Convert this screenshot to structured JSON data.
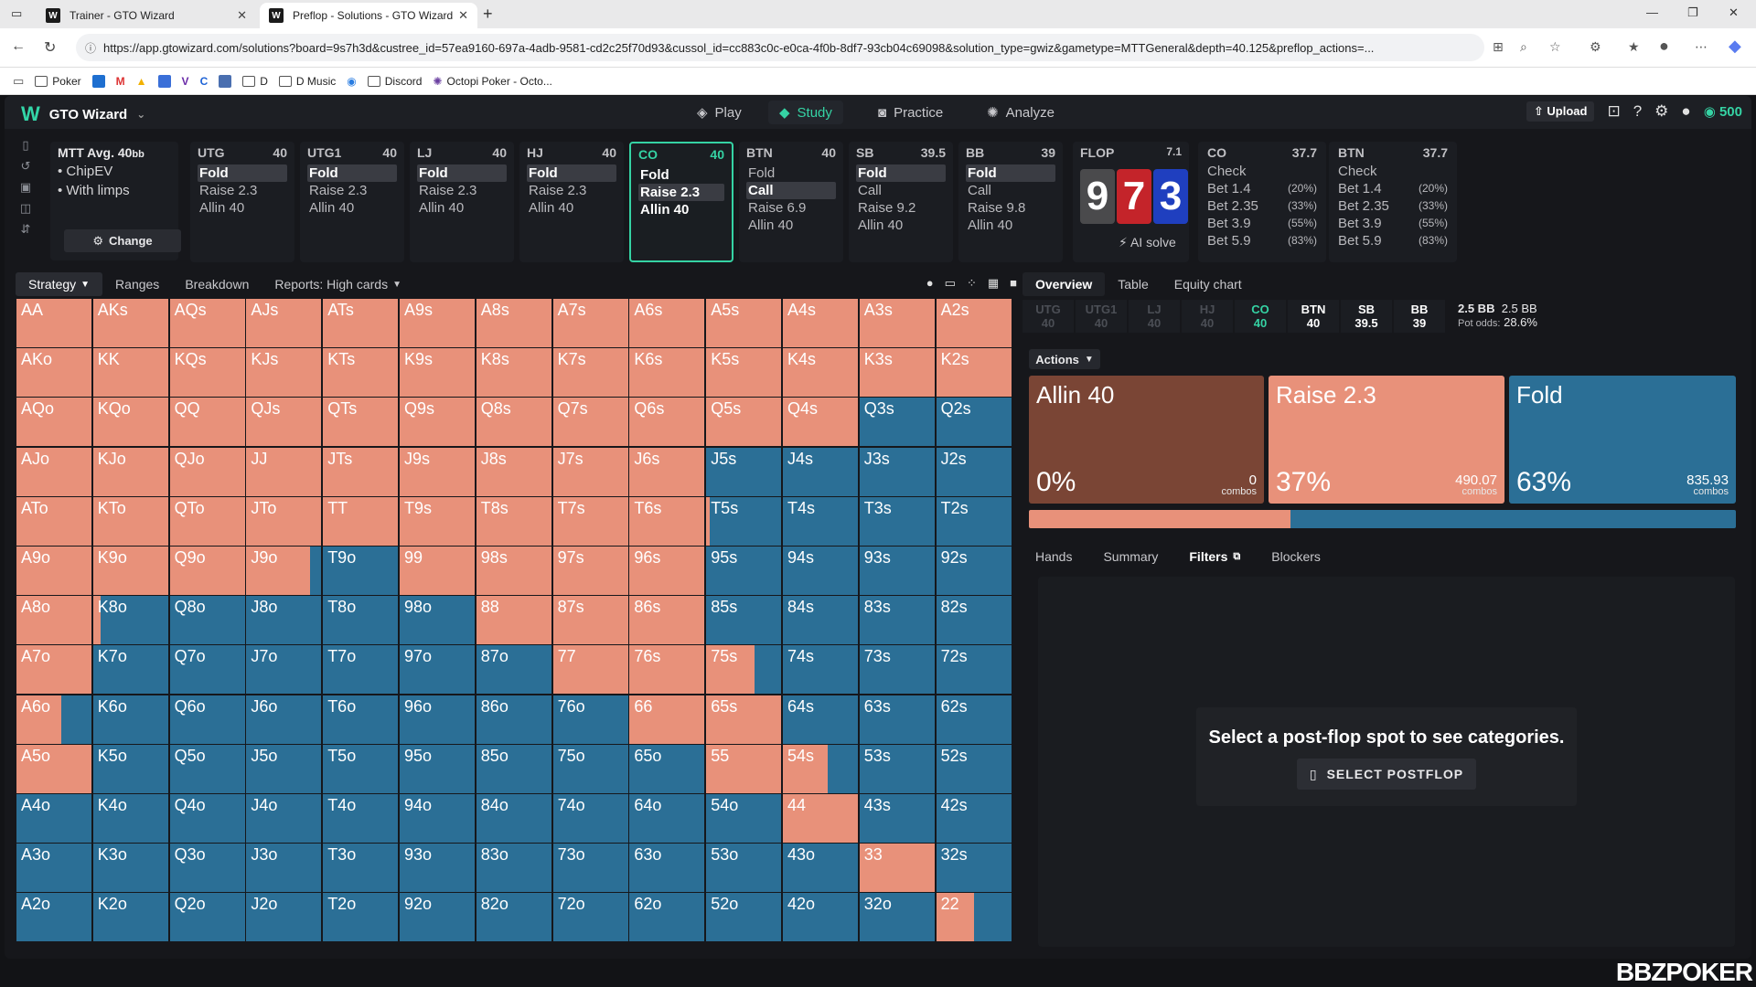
{
  "browser": {
    "tabs": [
      {
        "title": "Trainer - GTO Wizard",
        "favicon": "W"
      },
      {
        "title": "Preflop - Solutions - GTO Wizard",
        "favicon": "W"
      }
    ],
    "url": "https://app.gtowizard.com/solutions?board=9s7h3d&custree_id=57ea9160-697a-4adb-9581-cd2c25f70d93&cussol_id=cc883c0c-e0ca-4f0b-8df7-93cb04c69098&solution_type=gwiz&gametype=MTTGeneral&depth=40.125&preflop_actions=...",
    "bookmarks": [
      "Poker",
      "D",
      "D Music",
      "Discord",
      "Octopi Poker - Octo..."
    ]
  },
  "nav": {
    "brand": "GTO Wizard",
    "items": [
      "Play",
      "Study",
      "Practice",
      "Analyze"
    ],
    "active": "Study",
    "upload": "Upload",
    "coins": "500"
  },
  "settings": {
    "title": "MTT",
    "avg": "Avg. 40",
    "avg_unit": "bb",
    "opt1": "ChipEV",
    "opt2": "With limps",
    "change": "Change"
  },
  "positions": [
    {
      "name": "UTG",
      "stack": "40",
      "actions": [
        "Fold",
        "Raise 2.3",
        "Allin 40"
      ],
      "selected": 0
    },
    {
      "name": "UTG1",
      "stack": "40",
      "actions": [
        "Fold",
        "Raise 2.3",
        "Allin 40"
      ],
      "selected": 0
    },
    {
      "name": "LJ",
      "stack": "40",
      "actions": [
        "Fold",
        "Raise 2.3",
        "Allin 40"
      ],
      "selected": 0
    },
    {
      "name": "HJ",
      "stack": "40",
      "actions": [
        "Fold",
        "Raise 2.3",
        "Allin 40"
      ],
      "selected": 0
    },
    {
      "name": "CO",
      "stack": "40",
      "actions": [
        "Fold",
        "Raise 2.3",
        "Allin 40"
      ],
      "selected": 1
    },
    {
      "name": "BTN",
      "stack": "40",
      "actions": [
        "Fold",
        "Call",
        "Raise 6.9",
        "Allin 40"
      ],
      "selected": 1
    },
    {
      "name": "SB",
      "stack": "39.5",
      "actions": [
        "Fold",
        "Call",
        "Raise 9.2",
        "Allin 40"
      ],
      "selected": 0
    },
    {
      "name": "BB",
      "stack": "39",
      "actions": [
        "Fold",
        "Call",
        "Raise 9.8",
        "Allin 40"
      ],
      "selected": 0
    }
  ],
  "flop": {
    "label": "FLOP",
    "pot": "7.1",
    "cards": [
      {
        "rank": "9",
        "color": "#4a4a4c"
      },
      {
        "rank": "7",
        "color": "#c4242a"
      },
      {
        "rank": "3",
        "color": "#1f3fbf"
      }
    ],
    "ai_solve": "AI solve"
  },
  "streets": [
    {
      "name": "CO",
      "stack": "37.7",
      "rows": [
        [
          "Check",
          ""
        ],
        [
          "Bet 1.4",
          "(20%)"
        ],
        [
          "Bet 2.35",
          "(33%)"
        ],
        [
          "Bet 3.9",
          "(55%)"
        ],
        [
          "Bet 5.9",
          "(83%)"
        ]
      ]
    },
    {
      "name": "BTN",
      "stack": "37.7",
      "rows": [
        [
          "Check",
          ""
        ],
        [
          "Bet 1.4",
          "(20%)"
        ],
        [
          "Bet 2.35",
          "(33%)"
        ],
        [
          "Bet 3.9",
          "(55%)"
        ],
        [
          "Bet 5.9",
          "(83%)"
        ]
      ]
    }
  ],
  "left_tabs": [
    "Strategy",
    "Ranges",
    "Breakdown",
    "Reports: High cards"
  ],
  "colors": {
    "raise": "#e8917a",
    "fold": "#2b6f96",
    "allin": "#7a4535"
  },
  "grid": {
    "rows": [
      [
        "AA",
        "AKs",
        "AQs",
        "AJs",
        "ATs",
        "A9s",
        "A8s",
        "A7s",
        "A6s",
        "A5s",
        "A4s",
        "A3s",
        "A2s"
      ],
      [
        "AKo",
        "KK",
        "KQs",
        "KJs",
        "KTs",
        "K9s",
        "K8s",
        "K7s",
        "K6s",
        "K5s",
        "K4s",
        "K3s",
        "K2s"
      ],
      [
        "AQo",
        "KQo",
        "QQ",
        "QJs",
        "QTs",
        "Q9s",
        "Q8s",
        "Q7s",
        "Q6s",
        "Q5s",
        "Q4s",
        "Q3s",
        "Q2s"
      ],
      [
        "AJo",
        "KJo",
        "QJo",
        "JJ",
        "JTs",
        "J9s",
        "J8s",
        "J7s",
        "J6s",
        "J5s",
        "J4s",
        "J3s",
        "J2s"
      ],
      [
        "ATo",
        "KTo",
        "QTo",
        "JTo",
        "TT",
        "T9s",
        "T8s",
        "T7s",
        "T6s",
        "T5s",
        "T4s",
        "T3s",
        "T2s"
      ],
      [
        "A9o",
        "K9o",
        "Q9o",
        "J9o",
        "T9o",
        "99",
        "98s",
        "97s",
        "96s",
        "95s",
        "94s",
        "93s",
        "92s"
      ],
      [
        "A8o",
        "K8o",
        "Q8o",
        "J8o",
        "T8o",
        "98o",
        "88",
        "87s",
        "86s",
        "85s",
        "84s",
        "83s",
        "82s"
      ],
      [
        "A7o",
        "K7o",
        "Q7o",
        "J7o",
        "T7o",
        "97o",
        "87o",
        "77",
        "76s",
        "75s",
        "74s",
        "73s",
        "72s"
      ],
      [
        "A6o",
        "K6o",
        "Q6o",
        "J6o",
        "T6o",
        "96o",
        "86o",
        "76o",
        "66",
        "65s",
        "64s",
        "63s",
        "62s"
      ],
      [
        "A5o",
        "K5o",
        "Q5o",
        "J5o",
        "T5o",
        "95o",
        "85o",
        "75o",
        "65o",
        "55",
        "54s",
        "53s",
        "52s"
      ],
      [
        "A4o",
        "K4o",
        "Q4o",
        "J4o",
        "T4o",
        "94o",
        "84o",
        "74o",
        "64o",
        "54o",
        "44",
        "43s",
        "42s"
      ],
      [
        "A3o",
        "K3o",
        "Q3o",
        "J3o",
        "T3o",
        "93o",
        "83o",
        "73o",
        "63o",
        "53o",
        "43o",
        "33",
        "32s"
      ],
      [
        "A2o",
        "K2o",
        "Q2o",
        "J2o",
        "T2o",
        "92o",
        "82o",
        "72o",
        "62o",
        "52o",
        "42o",
        "32o",
        "22"
      ]
    ],
    "raise_freq": [
      [
        1,
        1,
        1,
        1,
        1,
        1,
        1,
        1,
        1,
        1,
        1,
        1,
        1
      ],
      [
        1,
        1,
        1,
        1,
        1,
        1,
        1,
        1,
        1,
        1,
        1,
        1,
        1
      ],
      [
        1,
        1,
        1,
        1,
        1,
        1,
        1,
        1,
        1,
        1,
        1,
        0,
        0
      ],
      [
        1,
        1,
        1,
        1,
        1,
        1,
        1,
        1,
        1,
        0,
        0,
        0,
        0
      ],
      [
        1,
        1,
        1,
        1,
        1,
        1,
        1,
        1,
        1,
        0.05,
        0,
        0,
        0
      ],
      [
        1,
        1,
        1,
        0.85,
        0,
        1,
        1,
        1,
        1,
        0,
        0,
        0,
        0
      ],
      [
        1,
        0.1,
        0,
        0,
        0,
        0,
        1,
        1,
        1,
        0,
        0,
        0,
        0
      ],
      [
        1,
        0,
        0,
        0,
        0,
        0,
        0,
        1,
        1,
        0.65,
        0,
        0,
        0
      ],
      [
        0.6,
        0,
        0,
        0,
        0,
        0,
        0,
        0,
        1,
        1,
        0,
        0,
        0
      ],
      [
        1,
        0,
        0,
        0,
        0,
        0,
        0,
        0,
        0,
        1,
        0.6,
        0,
        0
      ],
      [
        0,
        0,
        0,
        0,
        0,
        0,
        0,
        0,
        0,
        0,
        1,
        0,
        0
      ],
      [
        0,
        0,
        0,
        0,
        0,
        0,
        0,
        0,
        0,
        0,
        0,
        1,
        0
      ],
      [
        0,
        0,
        0,
        0,
        0,
        0,
        0,
        0,
        0,
        0,
        0,
        0,
        0.5
      ]
    ]
  },
  "right_tabs": [
    "Overview",
    "Table",
    "Equity chart"
  ],
  "pot_row": {
    "players": [
      {
        "name": "UTG",
        "stack": "40",
        "state": "dim"
      },
      {
        "name": "UTG1",
        "stack": "40",
        "state": "dim"
      },
      {
        "name": "LJ",
        "stack": "40",
        "state": "dim"
      },
      {
        "name": "HJ",
        "stack": "40",
        "state": "dim"
      },
      {
        "name": "CO",
        "stack": "40",
        "state": "hero"
      },
      {
        "name": "BTN",
        "stack": "40",
        "state": "live"
      },
      {
        "name": "SB",
        "stack": "39.5",
        "state": "live"
      },
      {
        "name": "BB",
        "stack": "39",
        "state": "live"
      }
    ],
    "pot_bold": "2.5 BB",
    "pot_plain": "2.5 BB",
    "pot_odds_label": "Pot odds:",
    "pot_odds": "28.6%"
  },
  "actions_label": "Actions",
  "actions": [
    {
      "name": "Allin 40",
      "pct": "0%",
      "combos": "0",
      "unit": "combos",
      "freq": 0
    },
    {
      "name": "Raise 2.3",
      "pct": "37%",
      "combos": "490.07",
      "unit": "combos",
      "freq": 0.37
    },
    {
      "name": "Fold",
      "pct": "63%",
      "combos": "835.93",
      "unit": "combos",
      "freq": 0.63
    }
  ],
  "sub_tabs": [
    "Hands",
    "Summary",
    "Filters",
    "Blockers"
  ],
  "empty": {
    "message": "Select a post-flop spot to see categories.",
    "button": "SELECT POSTFLOP"
  },
  "watermark": "BBZPOKER"
}
